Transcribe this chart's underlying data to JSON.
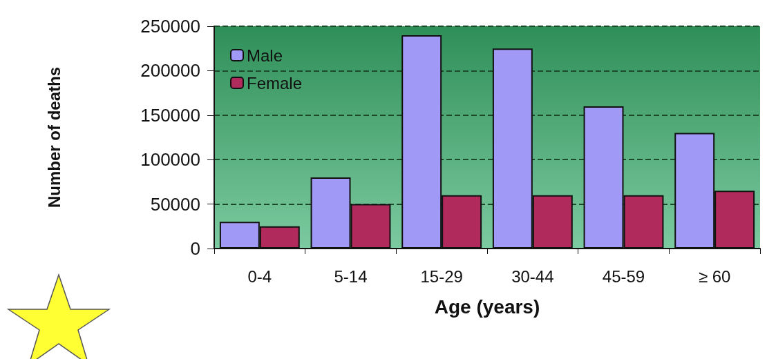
{
  "chart_data": {
    "type": "bar",
    "xlabel": "Age (years)",
    "ylabel": "Number of deaths",
    "categories": [
      "0-4",
      "5-14",
      "15-29",
      "30-44",
      "45-59",
      "≥ 60"
    ],
    "series": [
      {
        "name": "Male",
        "color": "#a099f5",
        "values": [
          30000,
          80000,
          240000,
          225000,
          160000,
          130000
        ]
      },
      {
        "name": "Female",
        "color": "#b02a5c",
        "values": [
          25000,
          50000,
          60000,
          60000,
          60000,
          65000
        ]
      }
    ],
    "ylim": [
      0,
      250000
    ],
    "yticks": [
      0,
      50000,
      100000,
      150000,
      200000,
      250000
    ],
    "grid": "y",
    "legend": "top left"
  }
}
